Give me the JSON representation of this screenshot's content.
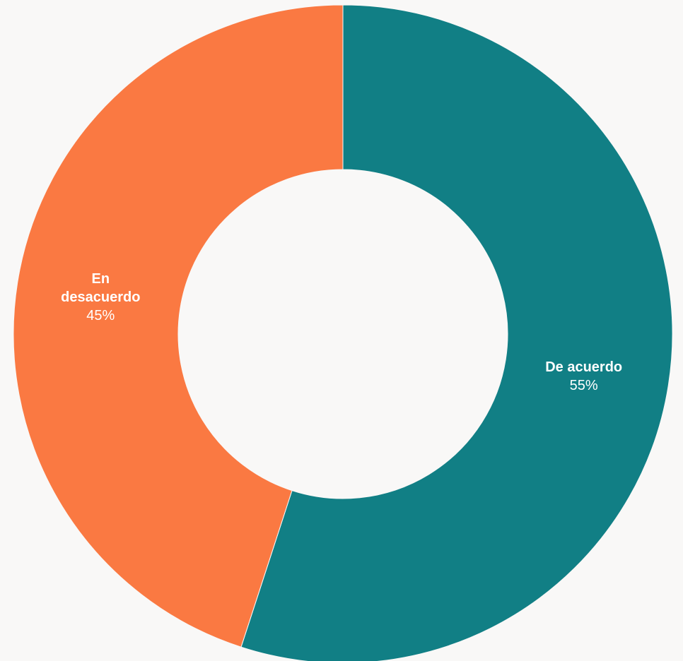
{
  "chart_data": {
    "type": "pie",
    "variant": "donut",
    "slices": [
      {
        "name": "De acuerdo",
        "label_lines": [
          "De acuerdo"
        ],
        "value": 55,
        "value_label": "55%",
        "color": "#117f85"
      },
      {
        "name": "En desacuerdo",
        "label_lines": [
          "En",
          "desacuerdo"
        ],
        "value": 45,
        "value_label": "45%",
        "color": "#fa7942"
      }
    ],
    "background": "#f9f8f7",
    "legend": "none"
  }
}
